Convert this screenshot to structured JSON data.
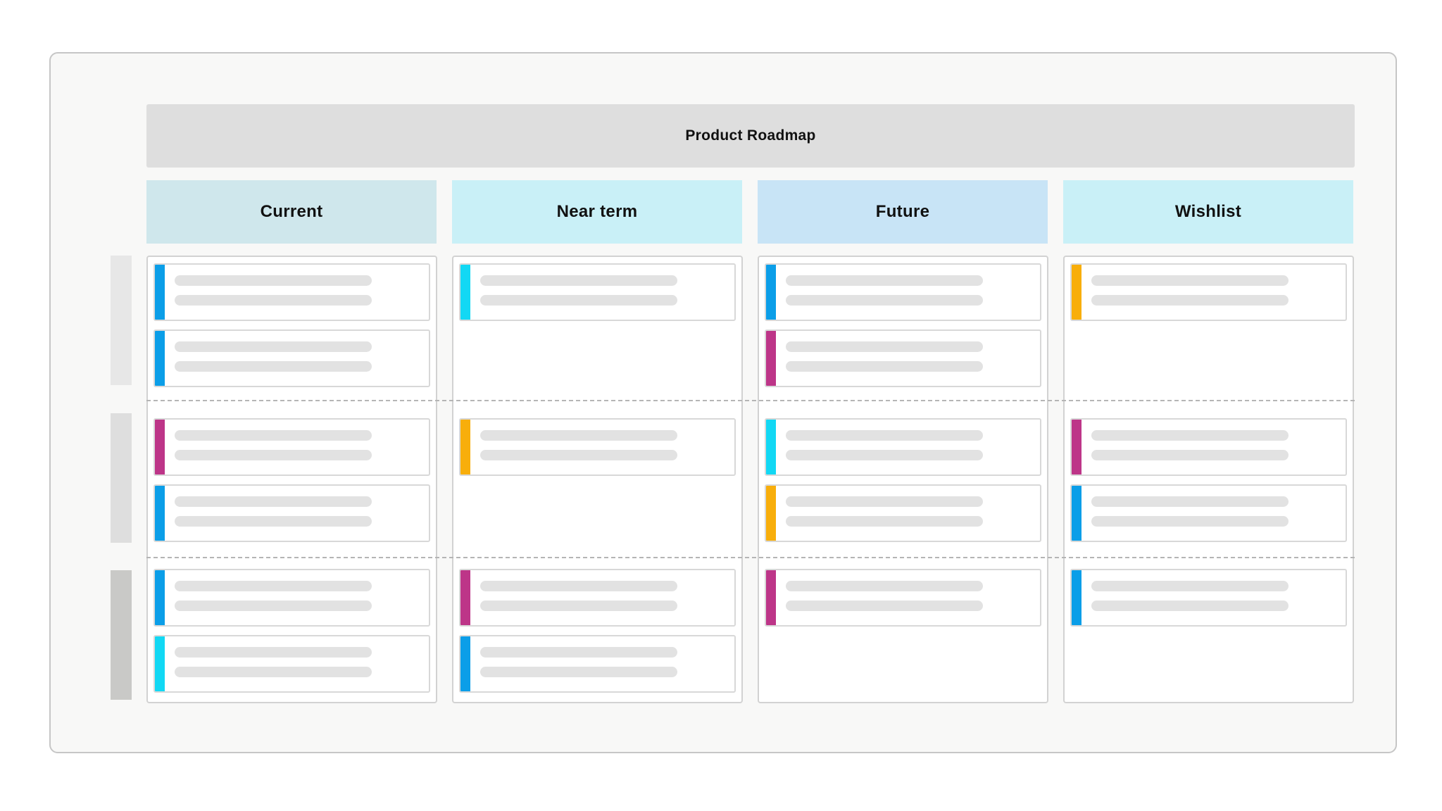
{
  "board": {
    "title": "Product Roadmap"
  },
  "columns": [
    {
      "label": "Current",
      "color": "#cfe7ec"
    },
    {
      "label": "Near term",
      "color": "#c9f0f7"
    },
    {
      "label": "Future",
      "color": "#c8e4f6"
    },
    {
      "label": "Wishlist",
      "color": "#c9f0f7"
    }
  ],
  "lanes": [
    {
      "marker_color": "#e7e7e7"
    },
    {
      "marker_color": "#dedede"
    },
    {
      "marker_color": "#c9c9c7"
    }
  ],
  "accent_colors": {
    "blue": "#0b9ee8",
    "cyan": "#12d8f4",
    "magenta": "#bd3588",
    "orange": "#f8ae0b"
  },
  "cards": [
    {
      "column": 0,
      "lane": 0,
      "slot": 0,
      "accent": "blue"
    },
    {
      "column": 0,
      "lane": 0,
      "slot": 1,
      "accent": "blue"
    },
    {
      "column": 0,
      "lane": 1,
      "slot": 0,
      "accent": "magenta"
    },
    {
      "column": 0,
      "lane": 1,
      "slot": 1,
      "accent": "blue"
    },
    {
      "column": 0,
      "lane": 2,
      "slot": 0,
      "accent": "blue"
    },
    {
      "column": 0,
      "lane": 2,
      "slot": 1,
      "accent": "cyan"
    },
    {
      "column": 1,
      "lane": 0,
      "slot": 0,
      "accent": "cyan"
    },
    {
      "column": 1,
      "lane": 1,
      "slot": 0,
      "accent": "orange"
    },
    {
      "column": 1,
      "lane": 2,
      "slot": 0,
      "accent": "magenta"
    },
    {
      "column": 1,
      "lane": 2,
      "slot": 1,
      "accent": "blue"
    },
    {
      "column": 2,
      "lane": 0,
      "slot": 0,
      "accent": "blue"
    },
    {
      "column": 2,
      "lane": 0,
      "slot": 1,
      "accent": "magenta"
    },
    {
      "column": 2,
      "lane": 1,
      "slot": 0,
      "accent": "cyan"
    },
    {
      "column": 2,
      "lane": 1,
      "slot": 1,
      "accent": "orange"
    },
    {
      "column": 2,
      "lane": 2,
      "slot": 0,
      "accent": "magenta"
    },
    {
      "column": 3,
      "lane": 0,
      "slot": 0,
      "accent": "orange"
    },
    {
      "column": 3,
      "lane": 1,
      "slot": 0,
      "accent": "magenta"
    },
    {
      "column": 3,
      "lane": 1,
      "slot": 1,
      "accent": "blue"
    },
    {
      "column": 3,
      "lane": 2,
      "slot": 0,
      "accent": "blue"
    }
  ]
}
